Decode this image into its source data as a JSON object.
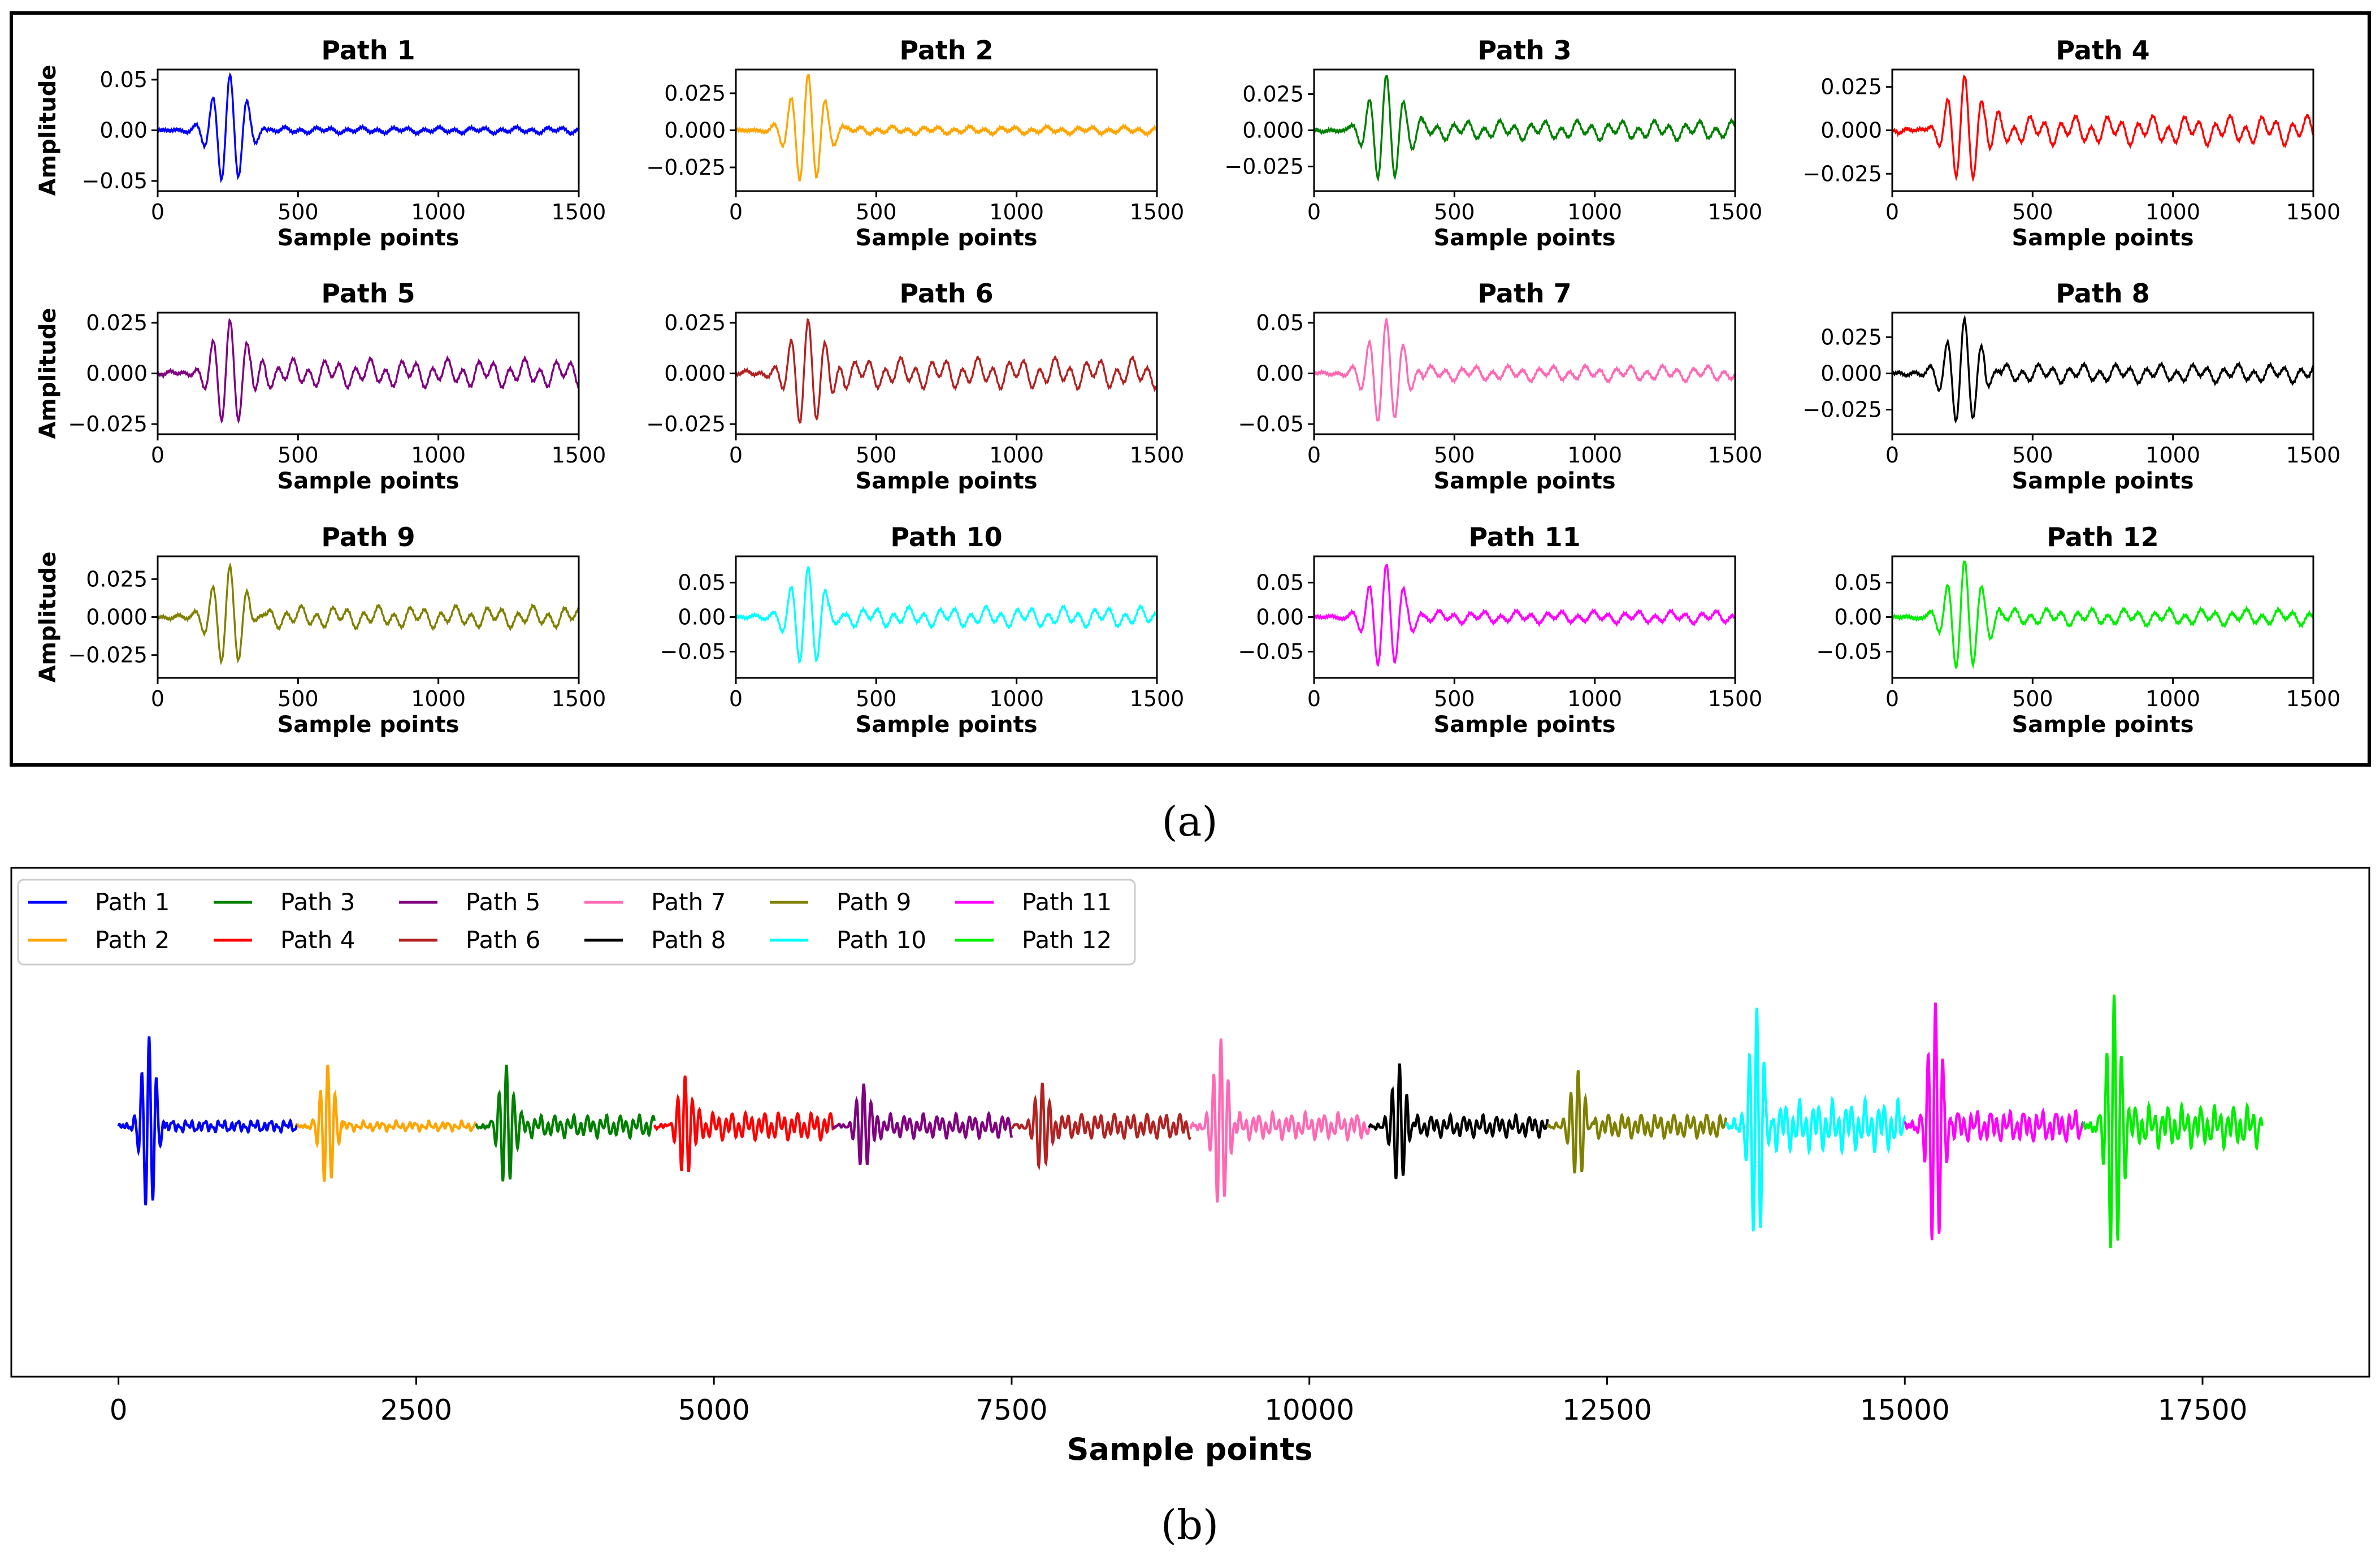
{
  "captions": {
    "a": "(a)",
    "b": "(b)"
  },
  "chart_data": [
    {
      "type": "line",
      "panel": "a",
      "layout": "grid 3 rows x 4 columns",
      "xlabel": "Sample points",
      "ylabel": "Amplitude",
      "xlim": [
        0,
        1500
      ],
      "xticks": [
        0,
        500,
        1000,
        1500
      ],
      "subplots": [
        {
          "title": "Path 1",
          "color": "#0000ff",
          "amplitude": 0.055,
          "ylim": [
            -0.06,
            0.06
          ],
          "yticks": [
            0.05,
            0.0,
            -0.05
          ],
          "ytick_labels": [
            "0.05",
            "0.00",
            "−0.05"
          ],
          "tail_level": 0.06
        },
        {
          "title": "Path 2",
          "color": "#ffa500",
          "amplitude": 0.038,
          "ylim": [
            -0.041,
            0.041
          ],
          "yticks": [
            0.025,
            0.0,
            -0.025
          ],
          "ytick_labels": [
            "0.025",
            "0.000",
            "−0.025"
          ],
          "tail_level": 0.07
        },
        {
          "title": "Path 3",
          "color": "#008000",
          "amplitude": 0.038,
          "ylim": [
            -0.042,
            0.042
          ],
          "yticks": [
            0.025,
            0.0,
            -0.025
          ],
          "ytick_labels": [
            "0.025",
            "0.000",
            "−0.025"
          ],
          "tail_level": 0.18
        },
        {
          "title": "Path 4",
          "color": "#ff0000",
          "amplitude": 0.031,
          "ylim": [
            -0.035,
            0.035
          ],
          "yticks": [
            0.025,
            0.0,
            -0.025
          ],
          "ytick_labels": [
            "0.025",
            "0.000",
            "−0.025"
          ],
          "tail_level": 0.28
        },
        {
          "title": "Path 5",
          "color": "#800080",
          "amplitude": 0.026,
          "ylim": [
            -0.03,
            0.03
          ],
          "yticks": [
            0.025,
            0.0,
            -0.025
          ],
          "ytick_labels": [
            "0.025",
            "0.000",
            "−0.025"
          ],
          "tail_level": 0.28
        },
        {
          "title": "Path 6",
          "color": "#b22222",
          "amplitude": 0.026,
          "ylim": [
            -0.03,
            0.03
          ],
          "yticks": [
            0.025,
            0.0,
            -0.025
          ],
          "ytick_labels": [
            "0.025",
            "0.000",
            "−0.025"
          ],
          "tail_level": 0.3
        },
        {
          "title": "Path 7",
          "color": "#ff69b4",
          "amplitude": 0.052,
          "ylim": [
            -0.06,
            0.06
          ],
          "yticks": [
            0.05,
            0.0,
            -0.05
          ],
          "ytick_labels": [
            "0.05",
            "0.00",
            "−0.05"
          ],
          "tail_level": 0.15
        },
        {
          "title": "Path 8",
          "color": "#000000",
          "amplitude": 0.037,
          "ylim": [
            -0.042,
            0.042
          ],
          "yticks": [
            0.025,
            0.0,
            -0.025
          ],
          "ytick_labels": [
            "0.025",
            "0.000",
            "−0.025"
          ],
          "tail_level": 0.18
        },
        {
          "title": "Path 9",
          "color": "#808000",
          "amplitude": 0.034,
          "ylim": [
            -0.04,
            0.04
          ],
          "yticks": [
            0.025,
            0.0,
            -0.025
          ],
          "ytick_labels": [
            "0.025",
            "0.000",
            "−0.025"
          ],
          "tail_level": 0.22
        },
        {
          "title": "Path 10",
          "color": "#00ffff",
          "amplitude": 0.075,
          "ylim": [
            -0.088,
            0.088
          ],
          "yticks": [
            0.05,
            0.0,
            -0.05
          ],
          "ytick_labels": [
            "0.05",
            "0.00",
            "−0.05"
          ],
          "tail_level": 0.2
        },
        {
          "title": "Path 11",
          "color": "#ff00ff",
          "amplitude": 0.078,
          "ylim": [
            -0.088,
            0.088
          ],
          "yticks": [
            0.05,
            0.0,
            -0.05
          ],
          "ytick_labels": [
            "0.05",
            "0.00",
            "−0.05"
          ],
          "tail_level": 0.12
        },
        {
          "title": "Path 12",
          "color": "#00ee00",
          "amplitude": 0.082,
          "ylim": [
            -0.088,
            0.088
          ],
          "yticks": [
            0.05,
            0.0,
            -0.05
          ],
          "ytick_labels": [
            "0.05",
            "0.00",
            "−0.05"
          ],
          "tail_level": 0.15
        }
      ]
    },
    {
      "type": "line",
      "panel": "b",
      "xlabel": "Sample points",
      "xlim": [
        -900,
        18900
      ],
      "xticks": [
        0,
        2500,
        5000,
        7500,
        10000,
        12500,
        15000,
        17500
      ],
      "segment_length": 1500,
      "series": [
        {
          "name": "Path 1",
          "color": "#0000ff",
          "start": 0,
          "end": 1500
        },
        {
          "name": "Path 2",
          "color": "#ffa500",
          "start": 1500,
          "end": 3000
        },
        {
          "name": "Path 3",
          "color": "#008000",
          "start": 3000,
          "end": 4500
        },
        {
          "name": "Path 4",
          "color": "#ff0000",
          "start": 4500,
          "end": 6000
        },
        {
          "name": "Path 5",
          "color": "#800080",
          "start": 6000,
          "end": 7500
        },
        {
          "name": "Path 6",
          "color": "#b22222",
          "start": 7500,
          "end": 9000
        },
        {
          "name": "Path 7",
          "color": "#ff69b4",
          "start": 9000,
          "end": 10500
        },
        {
          "name": "Path 8",
          "color": "#000000",
          "start": 10500,
          "end": 12000
        },
        {
          "name": "Path 9",
          "color": "#808000",
          "start": 12000,
          "end": 13500
        },
        {
          "name": "Path 10",
          "color": "#00ffff",
          "start": 13500,
          "end": 15000
        },
        {
          "name": "Path 11",
          "color": "#ff00ff",
          "start": 15000,
          "end": 16500
        },
        {
          "name": "Path 12",
          "color": "#00ee00",
          "start": 16500,
          "end": 18000
        }
      ],
      "legend": {
        "placement": "top-left",
        "columns": 6
      }
    }
  ]
}
